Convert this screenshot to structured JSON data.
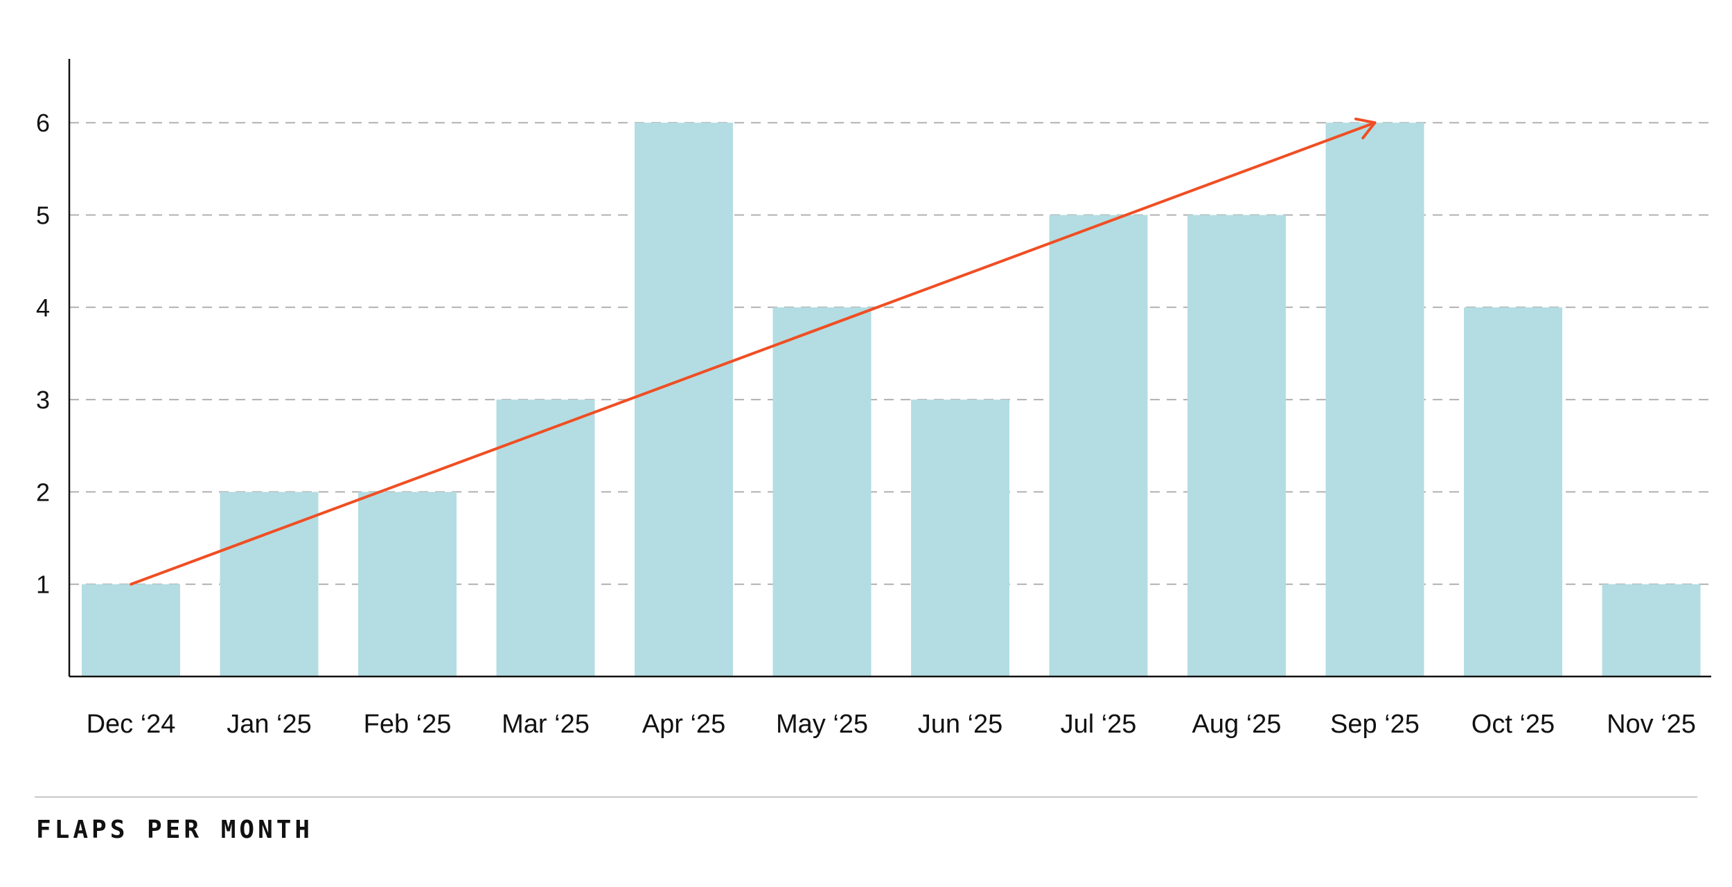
{
  "caption": "FLAPS PER MONTH",
  "colors": {
    "bar": "#b3dde2",
    "trend": "#f04e23",
    "grid": "#b0b0b0",
    "axis": "#111111"
  },
  "chart_data": {
    "type": "bar",
    "title": "",
    "xlabel": "",
    "ylabel": "",
    "ylim": [
      0,
      6.7
    ],
    "yticks": [
      1,
      2,
      3,
      4,
      5,
      6
    ],
    "grid": "horizontal dashed",
    "categories": [
      "Dec ‘24",
      "Jan ‘25",
      "Feb ‘25",
      "Mar ‘25",
      "Apr ‘25",
      "May ‘25",
      "Jun ‘25",
      "Jul ‘25",
      "Aug ‘25",
      "Sep ‘25",
      "Oct ‘25",
      "Nov ‘25"
    ],
    "values": [
      1,
      2,
      2,
      3,
      6,
      4,
      3,
      5,
      5,
      6,
      4,
      1
    ],
    "annotations": [
      {
        "type": "trend-arrow",
        "from": {
          "category": "Dec ‘24",
          "y": 1
        },
        "to": {
          "category": "Sep ‘25",
          "y": 6
        }
      }
    ]
  }
}
